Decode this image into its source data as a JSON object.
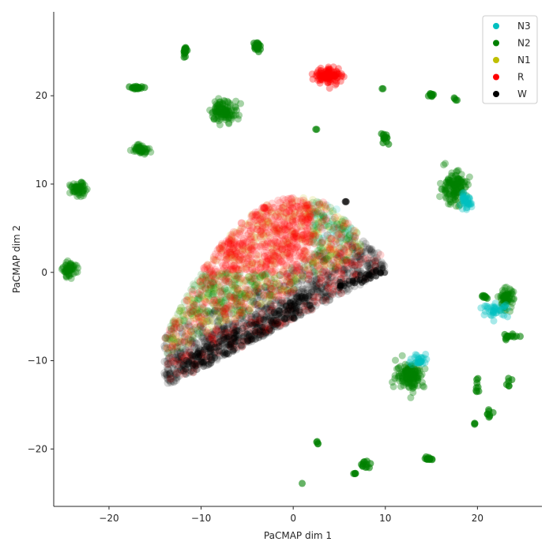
{
  "chart_data": {
    "type": "scatter",
    "title": "",
    "xlabel": "PaCMAP dim 1",
    "ylabel": "PaCMAP dim 2",
    "xlim": [
      -26,
      27
    ],
    "ylim": [
      -26.5,
      29.5
    ],
    "xticks": [
      -20,
      -10,
      0,
      10,
      20
    ],
    "yticks": [
      -20,
      -10,
      0,
      10,
      20
    ],
    "xtick_labels": [
      "−20",
      "−10",
      "0",
      "10",
      "20"
    ],
    "ytick_labels": [
      "−20",
      "−10",
      "0",
      "10",
      "20"
    ],
    "grid": false,
    "legend_position": "top-right",
    "series": [
      {
        "name": "N3",
        "color": "#00bfbf"
      },
      {
        "name": "N2",
        "color": "#008000"
      },
      {
        "name": "N1",
        "color": "#bfbf00"
      },
      {
        "name": "R",
        "color": "#ff0000"
      },
      {
        "name": "W",
        "color": "#000000"
      }
    ],
    "clusters": [
      {
        "series": "N2",
        "cx": -24.3,
        "cy": 0.3,
        "rx": 0.8,
        "ry": 0.9,
        "n": 60
      },
      {
        "series": "N2",
        "cx": -23.3,
        "cy": 9.4,
        "rx": 1.0,
        "ry": 0.8,
        "n": 60
      },
      {
        "series": "N2",
        "cx": -16.5,
        "cy": 14.0,
        "rx": 1.0,
        "ry": 0.6,
        "n": 50
      },
      {
        "series": "N2",
        "cx": -17.0,
        "cy": 20.9,
        "rx": 0.8,
        "ry": 0.2,
        "n": 20
      },
      {
        "series": "N2",
        "cx": -11.7,
        "cy": 25.0,
        "rx": 0.25,
        "ry": 0.6,
        "n": 15
      },
      {
        "series": "N2",
        "cx": -3.9,
        "cy": 25.6,
        "rx": 0.5,
        "ry": 0.6,
        "n": 20
      },
      {
        "series": "N2",
        "cx": -7.5,
        "cy": 18.3,
        "rx": 1.6,
        "ry": 1.3,
        "n": 110
      },
      {
        "series": "R",
        "cx": 3.8,
        "cy": 22.3,
        "rx": 1.6,
        "ry": 1.1,
        "n": 110
      },
      {
        "series": "N2",
        "cx": 2.5,
        "cy": 16.2,
        "rx": 0.1,
        "ry": 0.1,
        "n": 2
      },
      {
        "series": "N2",
        "cx": 9.7,
        "cy": 20.8,
        "rx": 0.1,
        "ry": 0.1,
        "n": 2
      },
      {
        "series": "N2",
        "cx": 10.0,
        "cy": 15.2,
        "rx": 0.5,
        "ry": 0.7,
        "n": 14
      },
      {
        "series": "N2",
        "cx": 14.8,
        "cy": 20.1,
        "rx": 0.5,
        "ry": 0.2,
        "n": 10
      },
      {
        "series": "N2",
        "cx": 17.6,
        "cy": 19.6,
        "rx": 0.3,
        "ry": 0.3,
        "n": 4
      },
      {
        "series": "N2",
        "cx": 17.4,
        "cy": 9.6,
        "rx": 1.6,
        "ry": 2.0,
        "n": 140
      },
      {
        "series": "N3",
        "cx": 18.7,
        "cy": 7.9,
        "rx": 0.7,
        "ry": 0.9,
        "n": 40
      },
      {
        "series": "N2",
        "cx": 23.1,
        "cy": -2.9,
        "rx": 0.9,
        "ry": 1.3,
        "n": 70
      },
      {
        "series": "N3",
        "cx": 22.0,
        "cy": -4.3,
        "rx": 1.5,
        "ry": 0.8,
        "n": 40
      },
      {
        "series": "N2",
        "cx": 20.8,
        "cy": -2.8,
        "rx": 0.5,
        "ry": 0.2,
        "n": 8
      },
      {
        "series": "N2",
        "cx": 23.5,
        "cy": -7.3,
        "rx": 1.2,
        "ry": 0.4,
        "n": 14
      },
      {
        "series": "N2",
        "cx": 12.7,
        "cy": -11.6,
        "rx": 1.7,
        "ry": 1.7,
        "n": 140
      },
      {
        "series": "N3",
        "cx": 13.7,
        "cy": -9.9,
        "rx": 1.1,
        "ry": 0.8,
        "n": 30
      },
      {
        "series": "N2",
        "cx": 20.0,
        "cy": -13.0,
        "rx": 0.3,
        "ry": 0.8,
        "n": 8
      },
      {
        "series": "N2",
        "cx": 21.3,
        "cy": -16.0,
        "rx": 0.7,
        "ry": 0.7,
        "n": 8
      },
      {
        "series": "N2",
        "cx": 23.4,
        "cy": -12.7,
        "rx": 0.3,
        "ry": 0.7,
        "n": 6
      },
      {
        "series": "N2",
        "cx": 19.7,
        "cy": -17.1,
        "rx": 0.1,
        "ry": 0.1,
        "n": 3
      },
      {
        "series": "N2",
        "cx": 14.8,
        "cy": -21.1,
        "rx": 0.4,
        "ry": 0.3,
        "n": 12
      },
      {
        "series": "N2",
        "cx": 7.8,
        "cy": -21.8,
        "rx": 0.7,
        "ry": 0.6,
        "n": 12
      },
      {
        "series": "N2",
        "cx": 6.7,
        "cy": -22.8,
        "rx": 0.2,
        "ry": 0.1,
        "n": 4
      },
      {
        "series": "N2",
        "cx": 2.6,
        "cy": -19.3,
        "rx": 0.1,
        "ry": 0.2,
        "n": 4
      },
      {
        "series": "N2",
        "cx": 1.0,
        "cy": -23.9,
        "rx": 0.05,
        "ry": 0.05,
        "n": 1
      },
      {
        "series": "W",
        "cx": 5.7,
        "cy": 8.0,
        "rx": 0.1,
        "ry": 0.1,
        "n": 2
      }
    ],
    "main_blob": {
      "cx_range": [
        -14.0,
        10.0
      ],
      "cy_range": [
        -13.0,
        8.8
      ],
      "n": 2600
    }
  }
}
